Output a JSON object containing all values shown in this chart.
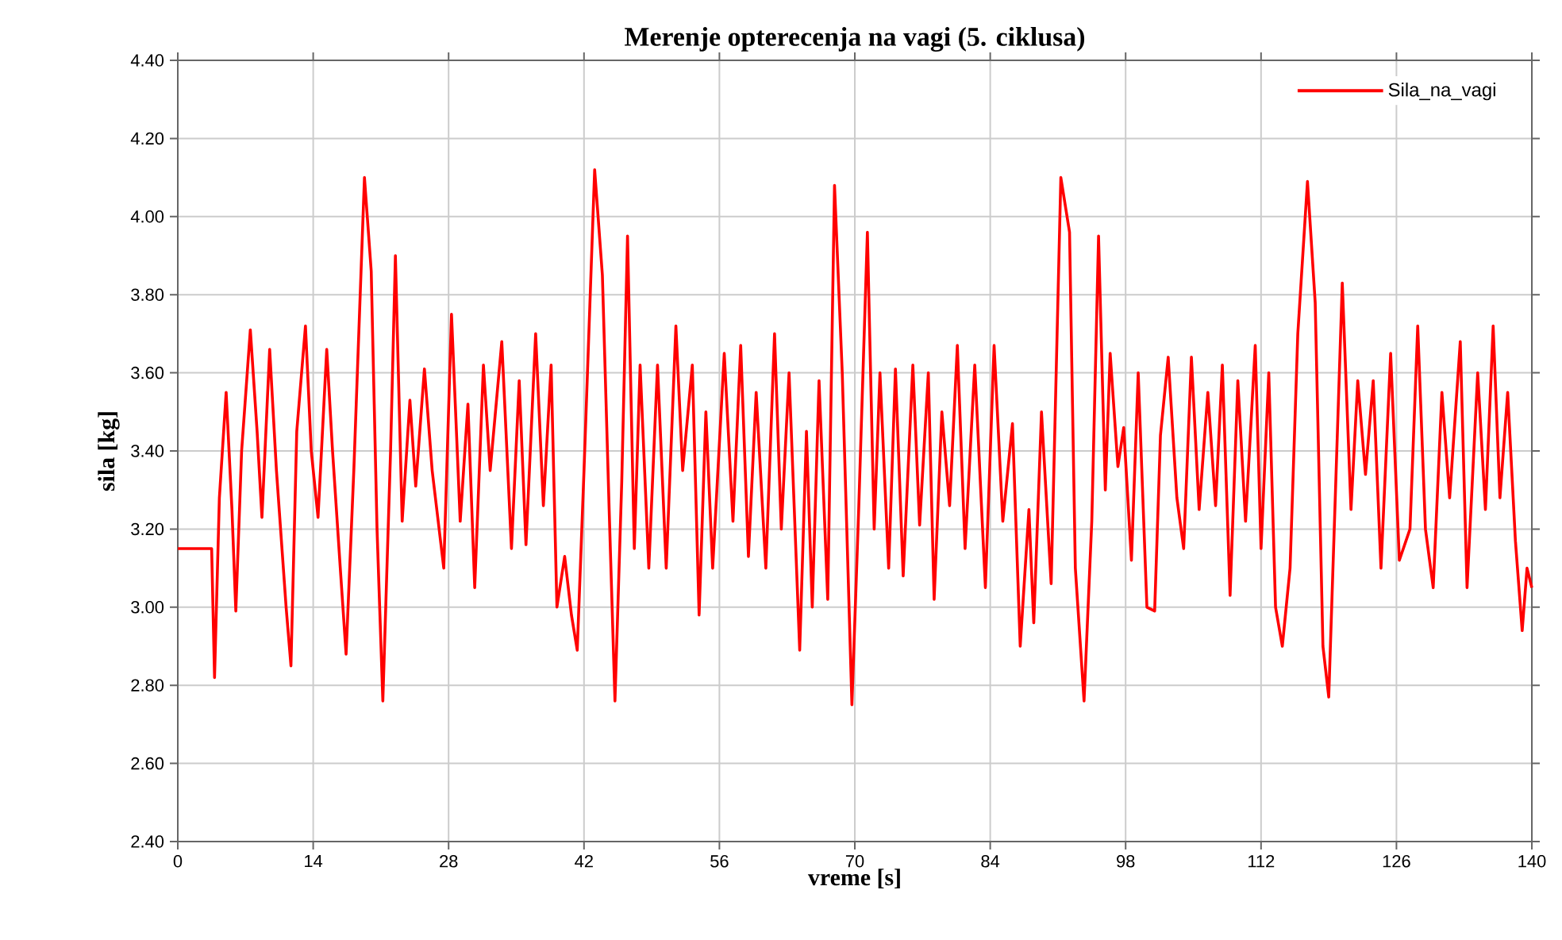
{
  "chart_data": {
    "type": "line",
    "title": "Merenje opterecenja na vagi (5. ciklusa)",
    "xlabel": "vreme [s]",
    "ylabel": "sila [kg]",
    "xlim": [
      0,
      140
    ],
    "xticks": [
      0,
      14,
      28,
      42,
      56,
      70,
      84,
      98,
      112,
      126,
      140
    ],
    "ylim": [
      2.4,
      4.4
    ],
    "yticks": [
      {
        "value": 2.4,
        "label": "2.40"
      },
      {
        "value": 2.6,
        "label": "2.60"
      },
      {
        "value": 2.8,
        "label": "2.80"
      },
      {
        "value": 3.0,
        "label": "3.00"
      },
      {
        "value": 3.2,
        "label": "3.20"
      },
      {
        "value": 3.4,
        "label": "3.40"
      },
      {
        "value": 3.6,
        "label": "3.60"
      },
      {
        "value": 3.8,
        "label": "3.80"
      },
      {
        "value": 4.0,
        "label": "4.00"
      },
      {
        "value": 4.2,
        "label": "4.20"
      },
      {
        "value": 4.4,
        "label": "4.40"
      }
    ],
    "grid": true,
    "legend": "top right",
    "marker": "none",
    "line_style": "solid",
    "x": [
      0,
      3.5,
      3.8,
      4.3,
      5.0,
      5.6,
      6.0,
      6.6,
      7.5,
      8.2,
      8.7,
      9.5,
      10.2,
      11.2,
      11.7,
      12.3,
      13.2,
      13.8,
      14.5,
      15.4,
      16.0,
      16.8,
      17.4,
      18.2,
      19.3,
      20.0,
      20.6,
      21.2,
      22.0,
      22.5,
      23.2,
      24.0,
      24.6,
      25.5,
      26.3,
      27.5,
      28.3,
      29.2,
      30.0,
      30.7,
      31.6,
      32.3,
      33.5,
      34.5,
      35.3,
      36.0,
      37.0,
      37.8,
      38.6,
      39.2,
      40.0,
      40.7,
      41.3,
      42.0,
      43.1,
      43.9,
      44.6,
      45.2,
      45.9,
      46.5,
      47.2,
      47.8,
      48.7,
      49.6,
      50.5,
      51.5,
      52.2,
      53.2,
      53.9,
      54.6,
      55.3,
      56.5,
      57.4,
      58.2,
      59.0,
      59.8,
      60.8,
      61.7,
      62.4,
      63.2,
      64.3,
      65.0,
      65.6,
      66.3,
      67.2,
      67.9,
      68.7,
      69.7,
      70.4,
      71.3,
      72.0,
      72.6,
      73.5,
      74.2,
      75.0,
      76.0,
      76.7,
      77.6,
      78.2,
      79.0,
      79.8,
      80.6,
      81.4,
      82.4,
      83.5,
      84.4,
      85.3,
      86.3,
      87.1,
      88.0,
      88.5,
      89.3,
      90.3,
      91.3,
      92.2,
      92.8,
      93.7,
      94.5,
      95.2,
      95.9,
      96.4,
      97.2,
      97.8,
      98.6,
      99.3,
      100.2,
      101.0,
      101.6,
      102.4,
      103.3,
      104.0,
      104.8,
      105.6,
      106.5,
      107.3,
      108.0,
      108.8,
      109.6,
      110.4,
      111.4,
      112.0,
      112.8,
      113.5,
      114.2,
      115.0,
      115.8,
      116.8,
      117.6,
      118.4,
      119.0,
      119.7,
      120.4,
      121.3,
      122.0,
      122.8,
      123.6,
      124.4,
      125.4,
      126.3,
      127.4,
      128.2,
      129.0,
      129.8,
      130.7,
      131.5,
      132.6,
      133.3,
      134.4,
      135.2,
      136.0,
      136.7,
      137.5,
      138.3,
      139.0,
      139.5,
      140.0
    ],
    "series": [
      {
        "name": "Sila_na_vagi",
        "color": "#ff0000",
        "values": [
          3.15,
          3.15,
          2.82,
          3.28,
          3.55,
          3.25,
          2.99,
          3.4,
          3.71,
          3.45,
          3.23,
          3.66,
          3.35,
          3.0,
          2.85,
          3.45,
          3.72,
          3.4,
          3.23,
          3.66,
          3.4,
          3.1,
          2.88,
          3.35,
          4.1,
          3.86,
          3.2,
          2.76,
          3.4,
          3.9,
          3.22,
          3.53,
          3.31,
          3.61,
          3.35,
          3.1,
          3.75,
          3.22,
          3.52,
          3.05,
          3.62,
          3.35,
          3.68,
          3.15,
          3.58,
          3.16,
          3.7,
          3.26,
          3.62,
          3.0,
          3.13,
          2.98,
          2.89,
          3.35,
          4.12,
          3.85,
          3.25,
          2.76,
          3.32,
          3.95,
          3.15,
          3.62,
          3.1,
          3.62,
          3.1,
          3.72,
          3.35,
          3.62,
          2.98,
          3.5,
          3.1,
          3.65,
          3.22,
          3.67,
          3.13,
          3.55,
          3.1,
          3.7,
          3.2,
          3.6,
          2.89,
          3.45,
          3.0,
          3.58,
          3.02,
          4.08,
          3.6,
          2.75,
          3.25,
          3.96,
          3.2,
          3.6,
          3.1,
          3.61,
          3.08,
          3.62,
          3.21,
          3.6,
          3.02,
          3.5,
          3.26,
          3.67,
          3.15,
          3.62,
          3.05,
          3.67,
          3.22,
          3.47,
          2.9,
          3.25,
          2.96,
          3.5,
          3.06,
          4.1,
          3.96,
          3.1,
          2.76,
          3.22,
          3.95,
          3.3,
          3.65,
          3.36,
          3.46,
          3.12,
          3.6,
          3.0,
          2.99,
          3.44,
          3.64,
          3.28,
          3.15,
          3.64,
          3.25,
          3.55,
          3.26,
          3.62,
          3.03,
          3.58,
          3.22,
          3.67,
          3.15,
          3.6,
          3.0,
          2.9,
          3.1,
          3.7,
          4.09,
          3.78,
          2.9,
          2.77,
          3.3,
          3.83,
          3.25,
          3.58,
          3.34,
          3.58,
          3.1,
          3.65,
          3.12,
          3.2,
          3.72,
          3.2,
          3.05,
          3.55,
          3.28,
          3.68,
          3.05,
          3.6,
          3.25,
          3.72,
          3.28,
          3.55,
          3.17,
          2.94,
          3.1,
          3.05
        ]
      }
    ]
  }
}
